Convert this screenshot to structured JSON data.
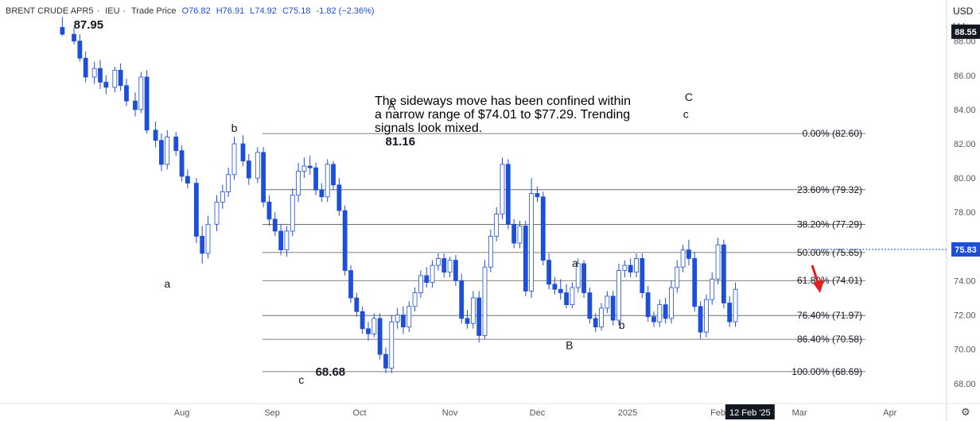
{
  "header": {
    "symbol": "BRENT CRUDE APR5",
    "exchange": "IEU",
    "price_type": "Trade Price",
    "open": "O76.82",
    "high": "H76.91",
    "low": "L74.92",
    "close": "C75.18",
    "change": "-1.82 (−2.36%)"
  },
  "scale": {
    "currency": "USD",
    "unit": "bbl",
    "settings_icon": "gear-icon"
  },
  "note": "The sideways move has been confined within a narrow range of $74.01 to $77.29. Trending signals look mixed.",
  "colors": {
    "bull_candle": "#ffffff",
    "bear_candle": "#1e4fd8",
    "candle_outline": "#1e4fd8",
    "fib_line": "#555555",
    "current_price_tag": "#1e4fd8",
    "last_high_tag": "#131722",
    "forecast_arrow": "#e02020",
    "date_tag": "#131722"
  },
  "chart_data": {
    "type": "candlestick",
    "title": "BRENT CRUDE APR5",
    "y_axis": {
      "position": "right",
      "ticks": [
        68.0,
        70.0,
        72.0,
        74.0,
        76.0,
        78.0,
        80.0,
        82.0,
        84.0,
        86.0,
        88.0
      ],
      "range": [
        67.2,
        90.4
      ]
    },
    "x_axis": {
      "ticks": [
        "Aug",
        "Sep",
        "Oct",
        "Nov",
        "Dec",
        "2025",
        "Feb",
        "Mar",
        "Apr"
      ]
    },
    "highlighted_date": "12 Feb '25",
    "current_price": 75.83,
    "last_high_price": 88.55,
    "fibonacci": [
      {
        "label": "0.00% (82.60)",
        "level": 0.0,
        "value": 82.6
      },
      {
        "label": "23.60% (79.32)",
        "level": 23.6,
        "value": 79.32
      },
      {
        "label": "38.20% (77.29)",
        "level": 38.2,
        "value": 77.29
      },
      {
        "label": "50.00% (75.65)",
        "level": 50.0,
        "value": 75.65
      },
      {
        "label": "61.80% (74.01)",
        "level": 61.8,
        "value": 74.01
      },
      {
        "label": "76.40% (71.97)",
        "level": 76.4,
        "value": 71.97
      },
      {
        "label": "86.40% (70.58)",
        "level": 86.4,
        "value": 70.58
      },
      {
        "label": "100.00% (68.69)",
        "level": 100.0,
        "value": 68.69
      }
    ],
    "annotations": [
      {
        "text": "87.95",
        "date": "2024-06-30",
        "price": 88.72,
        "style": "bold"
      },
      {
        "text": "a",
        "date": "2024-07-27",
        "price": 73.6
      },
      {
        "text": "b",
        "date": "2024-08-19",
        "price": 82.7
      },
      {
        "text": "c",
        "date": "2024-09-11",
        "price": 68.0
      },
      {
        "text": "68.68",
        "date": "2024-09-21",
        "price": 68.45,
        "style": "bold"
      },
      {
        "text": "A",
        "date": "2024-10-12",
        "price": 84.0
      },
      {
        "text": "81.16",
        "date": "2024-10-15",
        "price": 81.9,
        "style": "bold"
      },
      {
        "text": "a",
        "date": "2024-12-14",
        "price": 74.8
      },
      {
        "text": "B",
        "date": "2024-12-12",
        "price": 70.0
      },
      {
        "text": "b",
        "date": "2024-12-30",
        "price": 71.2
      },
      {
        "text": "C",
        "date": "2025-01-22",
        "price": 84.5
      },
      {
        "text": "c",
        "date": "2025-01-21",
        "price": 83.5
      }
    ],
    "candles": [
      {
        "date": "2024-06-21",
        "o": 88.8,
        "h": 89.4,
        "l": 88.3,
        "c": 88.4
      },
      {
        "date": "2024-06-25",
        "o": 88.4,
        "h": 88.8,
        "l": 87.8,
        "c": 88.0
      },
      {
        "date": "2024-06-27",
        "o": 88.0,
        "h": 88.4,
        "l": 86.8,
        "c": 87.0
      },
      {
        "date": "2024-06-29",
        "o": 87.0,
        "h": 87.4,
        "l": 85.6,
        "c": 85.9
      },
      {
        "date": "2024-07-02",
        "o": 85.9,
        "h": 86.8,
        "l": 85.5,
        "c": 86.4
      },
      {
        "date": "2024-07-04",
        "o": 86.4,
        "h": 86.9,
        "l": 85.2,
        "c": 85.6
      },
      {
        "date": "2024-07-06",
        "o": 85.6,
        "h": 86.0,
        "l": 84.9,
        "c": 85.3
      },
      {
        "date": "2024-07-09",
        "o": 85.3,
        "h": 86.5,
        "l": 85.0,
        "c": 86.3
      },
      {
        "date": "2024-07-11",
        "o": 86.3,
        "h": 86.7,
        "l": 85.1,
        "c": 85.4
      },
      {
        "date": "2024-07-13",
        "o": 85.4,
        "h": 85.8,
        "l": 84.2,
        "c": 84.5
      },
      {
        "date": "2024-07-16",
        "o": 84.5,
        "h": 85.0,
        "l": 83.6,
        "c": 84.0
      },
      {
        "date": "2024-07-18",
        "o": 84.0,
        "h": 86.2,
        "l": 83.8,
        "c": 85.9
      },
      {
        "date": "2024-07-20",
        "o": 85.9,
        "h": 86.3,
        "l": 82.6,
        "c": 82.8
      },
      {
        "date": "2024-07-23",
        "o": 82.8,
        "h": 83.3,
        "l": 81.8,
        "c": 82.2
      },
      {
        "date": "2024-07-25",
        "o": 82.2,
        "h": 82.6,
        "l": 80.4,
        "c": 80.8
      },
      {
        "date": "2024-07-27",
        "o": 80.8,
        "h": 82.8,
        "l": 80.5,
        "c": 82.4
      },
      {
        "date": "2024-07-30",
        "o": 82.4,
        "h": 82.7,
        "l": 81.3,
        "c": 81.6
      },
      {
        "date": "2024-08-01",
        "o": 81.6,
        "h": 81.9,
        "l": 79.8,
        "c": 80.1
      },
      {
        "date": "2024-08-03",
        "o": 80.1,
        "h": 80.5,
        "l": 79.4,
        "c": 79.7
      },
      {
        "date": "2024-08-06",
        "o": 79.7,
        "h": 80.0,
        "l": 76.2,
        "c": 76.6
      },
      {
        "date": "2024-08-08",
        "o": 76.6,
        "h": 77.2,
        "l": 75.0,
        "c": 75.6
      },
      {
        "date": "2024-08-10",
        "o": 75.6,
        "h": 77.8,
        "l": 75.3,
        "c": 77.3
      },
      {
        "date": "2024-08-13",
        "o": 77.3,
        "h": 79.0,
        "l": 76.9,
        "c": 78.6
      },
      {
        "date": "2024-08-15",
        "o": 78.6,
        "h": 79.6,
        "l": 78.2,
        "c": 79.2
      },
      {
        "date": "2024-08-17",
        "o": 79.2,
        "h": 80.6,
        "l": 78.9,
        "c": 80.2
      },
      {
        "date": "2024-08-19",
        "o": 80.2,
        "h": 82.4,
        "l": 79.9,
        "c": 82.0
      },
      {
        "date": "2024-08-22",
        "o": 82.0,
        "h": 82.5,
        "l": 80.7,
        "c": 81.0
      },
      {
        "date": "2024-08-24",
        "o": 81.0,
        "h": 81.4,
        "l": 79.6,
        "c": 80.0
      },
      {
        "date": "2024-08-27",
        "o": 80.0,
        "h": 81.8,
        "l": 79.7,
        "c": 81.5
      },
      {
        "date": "2024-08-29",
        "o": 81.5,
        "h": 81.8,
        "l": 78.3,
        "c": 78.6
      },
      {
        "date": "2024-08-31",
        "o": 78.6,
        "h": 79.0,
        "l": 77.2,
        "c": 77.6
      },
      {
        "date": "2024-09-02",
        "o": 77.6,
        "h": 78.0,
        "l": 76.6,
        "c": 76.9
      },
      {
        "date": "2024-09-04",
        "o": 76.9,
        "h": 77.3,
        "l": 75.5,
        "c": 75.8
      },
      {
        "date": "2024-09-06",
        "o": 75.8,
        "h": 77.2,
        "l": 75.4,
        "c": 76.9
      },
      {
        "date": "2024-09-08",
        "o": 76.9,
        "h": 79.4,
        "l": 76.6,
        "c": 79.0
      },
      {
        "date": "2024-09-10",
        "o": 79.0,
        "h": 80.9,
        "l": 78.6,
        "c": 80.4
      },
      {
        "date": "2024-09-12",
        "o": 80.4,
        "h": 81.2,
        "l": 80.0,
        "c": 80.7
      },
      {
        "date": "2024-09-14",
        "o": 80.7,
        "h": 81.3,
        "l": 80.2,
        "c": 80.6
      },
      {
        "date": "2024-09-16",
        "o": 80.6,
        "h": 80.9,
        "l": 79.0,
        "c": 79.3
      },
      {
        "date": "2024-09-18",
        "o": 79.3,
        "h": 79.7,
        "l": 78.6,
        "c": 78.9
      },
      {
        "date": "2024-09-20",
        "o": 78.9,
        "h": 81.1,
        "l": 78.6,
        "c": 80.8
      },
      {
        "date": "2024-09-22",
        "o": 80.8,
        "h": 81.0,
        "l": 79.3,
        "c": 79.6
      },
      {
        "date": "2024-09-24",
        "o": 79.6,
        "h": 80.0,
        "l": 77.8,
        "c": 78.1
      },
      {
        "date": "2024-09-26",
        "o": 78.1,
        "h": 78.4,
        "l": 74.3,
        "c": 74.6
      },
      {
        "date": "2024-09-28",
        "o": 74.6,
        "h": 74.9,
        "l": 72.7,
        "c": 73.0
      },
      {
        "date": "2024-09-30",
        "o": 73.0,
        "h": 73.3,
        "l": 71.9,
        "c": 72.2
      },
      {
        "date": "2024-10-02",
        "o": 72.2,
        "h": 72.5,
        "l": 70.9,
        "c": 71.2
      },
      {
        "date": "2024-10-04",
        "o": 71.2,
        "h": 71.6,
        "l": 70.5,
        "c": 70.9
      },
      {
        "date": "2024-10-06",
        "o": 70.9,
        "h": 72.1,
        "l": 70.7,
        "c": 71.8
      },
      {
        "date": "2024-10-08",
        "o": 71.8,
        "h": 72.1,
        "l": 69.4,
        "c": 69.7
      },
      {
        "date": "2024-10-10",
        "o": 69.7,
        "h": 70.1,
        "l": 68.6,
        "c": 68.9
      },
      {
        "date": "2024-10-12",
        "o": 68.9,
        "h": 72.0,
        "l": 68.6,
        "c": 71.6
      },
      {
        "date": "2024-10-14",
        "o": 71.6,
        "h": 72.4,
        "l": 71.2,
        "c": 72.0
      },
      {
        "date": "2024-10-16",
        "o": 72.0,
        "h": 72.5,
        "l": 70.9,
        "c": 71.3
      },
      {
        "date": "2024-10-18",
        "o": 71.3,
        "h": 72.8,
        "l": 71.0,
        "c": 72.5
      },
      {
        "date": "2024-10-20",
        "o": 72.5,
        "h": 73.6,
        "l": 72.2,
        "c": 73.3
      },
      {
        "date": "2024-10-22",
        "o": 73.3,
        "h": 74.6,
        "l": 73.0,
        "c": 74.3
      },
      {
        "date": "2024-10-24",
        "o": 74.3,
        "h": 74.8,
        "l": 73.6,
        "c": 73.9
      },
      {
        "date": "2024-10-26",
        "o": 73.9,
        "h": 75.2,
        "l": 73.6,
        "c": 74.9
      },
      {
        "date": "2024-10-28",
        "o": 74.9,
        "h": 75.6,
        "l": 74.6,
        "c": 75.3
      },
      {
        "date": "2024-10-30",
        "o": 75.3,
        "h": 75.6,
        "l": 74.2,
        "c": 74.5
      },
      {
        "date": "2024-11-01",
        "o": 74.5,
        "h": 75.4,
        "l": 74.2,
        "c": 75.2
      },
      {
        "date": "2024-11-03",
        "o": 75.2,
        "h": 75.5,
        "l": 73.7,
        "c": 74.0
      },
      {
        "date": "2024-11-05",
        "o": 74.0,
        "h": 74.4,
        "l": 71.5,
        "c": 71.8
      },
      {
        "date": "2024-11-07",
        "o": 71.8,
        "h": 72.3,
        "l": 71.2,
        "c": 71.5
      },
      {
        "date": "2024-11-09",
        "o": 71.5,
        "h": 73.4,
        "l": 71.2,
        "c": 73.0
      },
      {
        "date": "2024-11-11",
        "o": 73.0,
        "h": 73.4,
        "l": 70.4,
        "c": 70.8
      },
      {
        "date": "2024-11-13",
        "o": 70.8,
        "h": 75.2,
        "l": 70.6,
        "c": 74.8
      },
      {
        "date": "2024-11-15",
        "o": 74.8,
        "h": 77.0,
        "l": 74.5,
        "c": 76.6
      },
      {
        "date": "2024-11-17",
        "o": 76.6,
        "h": 78.3,
        "l": 76.3,
        "c": 77.9
      },
      {
        "date": "2024-11-19",
        "o": 77.9,
        "h": 81.2,
        "l": 77.6,
        "c": 80.8
      },
      {
        "date": "2024-11-21",
        "o": 80.8,
        "h": 81.1,
        "l": 77.0,
        "c": 77.3
      },
      {
        "date": "2024-11-23",
        "o": 77.3,
        "h": 77.6,
        "l": 75.9,
        "c": 76.2
      },
      {
        "date": "2024-11-25",
        "o": 76.2,
        "h": 77.5,
        "l": 75.9,
        "c": 77.2
      },
      {
        "date": "2024-11-27",
        "o": 77.2,
        "h": 77.5,
        "l": 73.1,
        "c": 73.4
      },
      {
        "date": "2024-11-29",
        "o": 73.4,
        "h": 80.0,
        "l": 73.0,
        "c": 79.1
      },
      {
        "date": "2024-12-01",
        "o": 79.1,
        "h": 79.5,
        "l": 78.6,
        "c": 78.9
      },
      {
        "date": "2024-12-03",
        "o": 78.9,
        "h": 79.2,
        "l": 74.9,
        "c": 75.2
      },
      {
        "date": "2024-12-05",
        "o": 75.2,
        "h": 75.6,
        "l": 73.5,
        "c": 73.8
      },
      {
        "date": "2024-12-07",
        "o": 73.8,
        "h": 74.2,
        "l": 73.2,
        "c": 73.5
      },
      {
        "date": "2024-12-09",
        "o": 73.5,
        "h": 74.1,
        "l": 72.9,
        "c": 73.3
      },
      {
        "date": "2024-12-11",
        "o": 73.3,
        "h": 73.8,
        "l": 72.4,
        "c": 72.6
      },
      {
        "date": "2024-12-13",
        "o": 72.6,
        "h": 73.9,
        "l": 72.4,
        "c": 73.6
      },
      {
        "date": "2024-12-15",
        "o": 73.6,
        "h": 75.3,
        "l": 73.3,
        "c": 75.0
      },
      {
        "date": "2024-12-17",
        "o": 75.0,
        "h": 75.2,
        "l": 73.0,
        "c": 73.3
      },
      {
        "date": "2024-12-19",
        "o": 73.3,
        "h": 73.6,
        "l": 71.5,
        "c": 71.8
      },
      {
        "date": "2024-12-21",
        "o": 71.8,
        "h": 72.1,
        "l": 71.0,
        "c": 71.3
      },
      {
        "date": "2024-12-23",
        "o": 71.3,
        "h": 72.7,
        "l": 71.1,
        "c": 72.4
      },
      {
        "date": "2024-12-25",
        "o": 72.4,
        "h": 73.4,
        "l": 72.1,
        "c": 73.1
      },
      {
        "date": "2024-12-27",
        "o": 73.1,
        "h": 73.4,
        "l": 71.4,
        "c": 71.7
      },
      {
        "date": "2024-12-29",
        "o": 71.7,
        "h": 75.0,
        "l": 71.4,
        "c": 74.6
      },
      {
        "date": "2024-12-31",
        "o": 74.6,
        "h": 75.2,
        "l": 74.2,
        "c": 74.9
      },
      {
        "date": "2025-01-02",
        "o": 74.9,
        "h": 75.3,
        "l": 74.2,
        "c": 74.5
      },
      {
        "date": "2025-01-04",
        "o": 74.5,
        "h": 75.6,
        "l": 74.2,
        "c": 75.3
      },
      {
        "date": "2025-01-06",
        "o": 75.3,
        "h": 75.6,
        "l": 73.0,
        "c": 73.3
      },
      {
        "date": "2025-01-08",
        "o": 73.3,
        "h": 73.7,
        "l": 71.6,
        "c": 71.9
      },
      {
        "date": "2025-01-10",
        "o": 71.9,
        "h": 72.2,
        "l": 71.3,
        "c": 71.6
      },
      {
        "date": "2025-01-12",
        "o": 71.6,
        "h": 72.9,
        "l": 71.3,
        "c": 72.6
      },
      {
        "date": "2025-01-14",
        "o": 72.6,
        "h": 73.0,
        "l": 71.5,
        "c": 71.8
      },
      {
        "date": "2025-01-16",
        "o": 71.8,
        "h": 74.0,
        "l": 71.5,
        "c": 73.6
      },
      {
        "date": "2025-01-18",
        "o": 73.6,
        "h": 75.2,
        "l": 73.3,
        "c": 74.8
      },
      {
        "date": "2025-01-20",
        "o": 74.8,
        "h": 76.1,
        "l": 74.5,
        "c": 75.8
      },
      {
        "date": "2025-01-22",
        "o": 75.8,
        "h": 76.4,
        "l": 74.9,
        "c": 75.3
      },
      {
        "date": "2025-01-24",
        "o": 75.3,
        "h": 75.7,
        "l": 72.2,
        "c": 72.5
      },
      {
        "date": "2025-01-26",
        "o": 72.5,
        "h": 72.8,
        "l": 70.6,
        "c": 71.0
      },
      {
        "date": "2025-01-28",
        "o": 71.0,
        "h": 73.2,
        "l": 70.7,
        "c": 72.9
      },
      {
        "date": "2025-01-30",
        "o": 72.9,
        "h": 74.5,
        "l": 72.6,
        "c": 74.1
      },
      {
        "date": "2025-02-01",
        "o": 74.1,
        "h": 76.5,
        "l": 73.8,
        "c": 76.1
      },
      {
        "date": "2025-02-03",
        "o": 76.1,
        "h": 76.4,
        "l": 72.4,
        "c": 72.7
      },
      {
        "date": "2025-02-05",
        "o": 72.7,
        "h": 73.1,
        "l": 71.3,
        "c": 71.6
      },
      {
        "date": "2025-02-07",
        "o": 71.6,
        "h": 73.9,
        "l": 71.3,
        "c": 73.5
      }
    ]
  }
}
